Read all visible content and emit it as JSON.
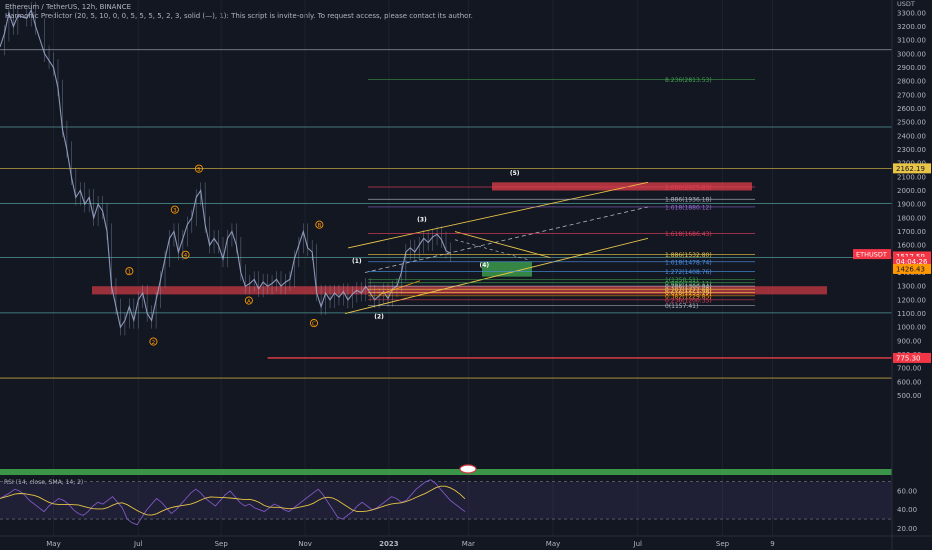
{
  "header": {
    "title": "Ethereum / TetherUS, 12h, BINANCE",
    "indicator": "Harmonic Predictor (20, 5, 10, 0, 0, 5, 5, 5, 5, 2, 3, solid (—), 1): This script is invite-only. To request access, please contact its author.",
    "currency": "USDT"
  },
  "colors": {
    "background": "#131722",
    "candle": "#9aa6c8",
    "red_zone": "#c73a43",
    "green_zone": "#3fa34d",
    "yellow": "#e8c547",
    "orange": "#ff9800",
    "cyan_line": "#5fb8b3",
    "rsi_line": "#7e57c2",
    "rsi_ma": "#e8c547"
  },
  "chart_data": {
    "type": "line",
    "symbol": "ETHUSDT",
    "ylim": [
      -30,
      3350
    ],
    "yticks": [
      800,
      900,
      1000,
      1100,
      1200,
      1300,
      1400,
      1500,
      1600,
      1700,
      1800,
      1900,
      2000,
      2100,
      2200,
      2300,
      2400,
      2500,
      2600,
      2700,
      2800,
      2900,
      3000,
      3100,
      3200,
      3300
    ],
    "ytick_labels": [
      "800.00",
      "900.00",
      "1000.00",
      "1100.00",
      "1200.00",
      "1300.00",
      "1400.00",
      "1500.00",
      "1600.00",
      "1700.00",
      "1800.00",
      "1900.00",
      "2000.00",
      "2100.00",
      "2200.00",
      "2300.00",
      "2400.00",
      "2500.00",
      "2600.00",
      "2700.00",
      "2800.00",
      "2900.00",
      "3000.00",
      "3100.00",
      "3200.00",
      "3300.00"
    ],
    "extra_ticks": [
      {
        "value": 700,
        "label": "700.00"
      },
      {
        "value": 600,
        "label": "600.00"
      },
      {
        "value": 500,
        "label": "500.00"
      }
    ],
    "xlabels": [
      {
        "label": "May",
        "t": 0.06
      },
      {
        "label": "Jul",
        "t": 0.155
      },
      {
        "label": "Sep",
        "t": 0.248
      },
      {
        "label": "Nov",
        "t": 0.342
      },
      {
        "label": "2023",
        "t": 0.436
      },
      {
        "label": "Mar",
        "t": 0.525
      },
      {
        "label": "May",
        "t": 0.62
      },
      {
        "label": "Jul",
        "t": 0.715
      },
      {
        "label": "Sep",
        "t": 0.81
      },
      {
        "label": "9",
        "t": 0.866
      }
    ],
    "price_path": [
      [
        0.0,
        3050
      ],
      [
        0.005,
        3150
      ],
      [
        0.01,
        3300
      ],
      [
        0.015,
        3200
      ],
      [
        0.02,
        3280
      ],
      [
        0.03,
        3260
      ],
      [
        0.035,
        3320
      ],
      [
        0.04,
        3200
      ],
      [
        0.05,
        3000
      ],
      [
        0.055,
        2950
      ],
      [
        0.06,
        2900
      ],
      [
        0.065,
        2750
      ],
      [
        0.07,
        2450
      ],
      [
        0.075,
        2300
      ],
      [
        0.08,
        2100
      ],
      [
        0.085,
        1950
      ],
      [
        0.09,
        2000
      ],
      [
        0.095,
        1900
      ],
      [
        0.1,
        1950
      ],
      [
        0.105,
        1800
      ],
      [
        0.11,
        1900
      ],
      [
        0.115,
        1850
      ],
      [
        0.12,
        1700
      ],
      [
        0.125,
        1300
      ],
      [
        0.13,
        1150
      ],
      [
        0.135,
        1000
      ],
      [
        0.14,
        1050
      ],
      [
        0.145,
        1150
      ],
      [
        0.15,
        1050
      ],
      [
        0.155,
        1200
      ],
      [
        0.16,
        1250
      ],
      [
        0.165,
        1100
      ],
      [
        0.17,
        1050
      ],
      [
        0.175,
        1200
      ],
      [
        0.18,
        1350
      ],
      [
        0.185,
        1500
      ],
      [
        0.19,
        1650
      ],
      [
        0.195,
        1700
      ],
      [
        0.2,
        1550
      ],
      [
        0.205,
        1650
      ],
      [
        0.21,
        1750
      ],
      [
        0.215,
        1800
      ],
      [
        0.22,
        1950
      ],
      [
        0.225,
        2000
      ],
      [
        0.23,
        1750
      ],
      [
        0.235,
        1600
      ],
      [
        0.24,
        1650
      ],
      [
        0.245,
        1600
      ],
      [
        0.25,
        1500
      ],
      [
        0.255,
        1650
      ],
      [
        0.26,
        1700
      ],
      [
        0.265,
        1600
      ],
      [
        0.27,
        1400
      ],
      [
        0.275,
        1300
      ],
      [
        0.28,
        1320
      ],
      [
        0.285,
        1350
      ],
      [
        0.29,
        1280
      ],
      [
        0.295,
        1330
      ],
      [
        0.3,
        1300
      ],
      [
        0.305,
        1320
      ],
      [
        0.31,
        1350
      ],
      [
        0.315,
        1300
      ],
      [
        0.32,
        1330
      ],
      [
        0.325,
        1350
      ],
      [
        0.33,
        1500
      ],
      [
        0.335,
        1600
      ],
      [
        0.34,
        1700
      ],
      [
        0.345,
        1580
      ],
      [
        0.35,
        1550
      ],
      [
        0.355,
        1250
      ],
      [
        0.36,
        1150
      ],
      [
        0.365,
        1250
      ],
      [
        0.37,
        1200
      ],
      [
        0.375,
        1250
      ],
      [
        0.38,
        1220
      ],
      [
        0.385,
        1260
      ],
      [
        0.39,
        1200
      ],
      [
        0.395,
        1240
      ],
      [
        0.4,
        1270
      ],
      [
        0.405,
        1250
      ],
      [
        0.41,
        1300
      ],
      [
        0.415,
        1250
      ],
      [
        0.42,
        1200
      ],
      [
        0.425,
        1230
      ],
      [
        0.43,
        1260
      ],
      [
        0.435,
        1210
      ],
      [
        0.44,
        1280
      ],
      [
        0.445,
        1300
      ],
      [
        0.45,
        1400
      ],
      [
        0.455,
        1550
      ],
      [
        0.46,
        1580
      ],
      [
        0.465,
        1550
      ],
      [
        0.47,
        1600
      ],
      [
        0.475,
        1650
      ],
      [
        0.48,
        1620
      ],
      [
        0.485,
        1660
      ],
      [
        0.49,
        1680
      ],
      [
        0.495,
        1640
      ],
      [
        0.5,
        1560
      ],
      [
        0.505,
        1540
      ]
    ],
    "ratio_levels": [
      {
        "label": "8.236(2813.53)",
        "value": 2813.53,
        "color": "#3fa34d"
      },
      {
        "label": "2.000(2025.83)",
        "value": 2025.83,
        "color": "#e53e5b"
      },
      {
        "label": "1.886(1936.18)",
        "value": 1936.18,
        "color": "#b2b5be"
      },
      {
        "label": "1.618(1880.12)",
        "value": 1880.12,
        "color": "#9c6bd9"
      },
      {
        "label": "1.618(1686.43)",
        "value": 1686.43,
        "color": "#e53e5b"
      },
      {
        "label": "1.886(1532.80)",
        "value": 1532.8,
        "color": "#e8c547"
      },
      {
        "label": "1.618(1478.74)",
        "value": 1478.74,
        "color": "#4a90e2"
      },
      {
        "label": "1.272(1408.76)",
        "value": 1408.76,
        "color": "#4a90e2"
      },
      {
        "label": "1(1350.51)",
        "value": 1350.51,
        "color": "#3fa34d"
      },
      {
        "label": "0.886(1325.11)",
        "value": 1325.11,
        "color": "#3fa34d"
      },
      {
        "label": "0.786(1300.84)",
        "value": 1300.84,
        "color": "#b2b5be"
      },
      {
        "label": "0.707(1277.68)",
        "value": 1277.68,
        "color": "#e8c547"
      },
      {
        "label": "0.618(1253.29)",
        "value": 1253.29,
        "color": "#e8c547"
      },
      {
        "label": "0.382(1229.85)",
        "value": 1229.85,
        "color": "#ff9800"
      },
      {
        "label": "0.236(1200.35)",
        "value": 1200.35,
        "color": "#e53e5b"
      },
      {
        "label": "0(1157.41)",
        "value": 1157.41,
        "color": "#b2b5be"
      }
    ],
    "horizontal_lines": [
      {
        "value": 3030,
        "color": "#b2b5be"
      },
      {
        "value": 2465,
        "color": "#5fb8b3"
      },
      {
        "value": 2162.19,
        "color": "#e8c547"
      },
      {
        "value": 1905,
        "color": "#5fb8b3"
      },
      {
        "value": 1510,
        "color": "#5fb8b3"
      },
      {
        "value": 1105,
        "color": "#5fb8b3"
      },
      {
        "value": 628,
        "color": "#e8c547"
      }
    ],
    "price_tags": [
      {
        "value": 2162.19,
        "label": "2162.19",
        "bg": "#e8c547",
        "fg": "#131722"
      },
      {
        "value": 1517.59,
        "label": "1517.59",
        "bg": "#f23645",
        "fg": "#ffffff"
      },
      {
        "value": 1480,
        "label": "04:04:26",
        "bg": "#f23645",
        "fg": "#ffffff"
      },
      {
        "value": 1426.43,
        "label": "1426.43",
        "bg": "#ff9800",
        "fg": "#131722"
      },
      {
        "value": 775.3,
        "label": "775.30",
        "bg": "#f23645",
        "fg": "#ffffff"
      }
    ],
    "symbol_tag": {
      "label": "ETHUSDT",
      "value": 1535
    },
    "wave_labels_orange": [
      {
        "label": "1",
        "t": 0.145,
        "v": 1410
      },
      {
        "label": "2",
        "t": 0.172,
        "v": 895
      },
      {
        "label": "3",
        "t": 0.196,
        "v": 1860
      },
      {
        "label": "4",
        "t": 0.208,
        "v": 1530
      },
      {
        "label": "5",
        "t": 0.223,
        "v": 2160
      },
      {
        "label": "A",
        "t": 0.279,
        "v": 1195
      },
      {
        "label": "B",
        "t": 0.358,
        "v": 1750
      },
      {
        "label": "C",
        "t": 0.352,
        "v": 1030
      }
    ],
    "wave_labels_white": [
      {
        "label": "(1)",
        "t": 0.4,
        "v": 1470
      },
      {
        "label": "(2)",
        "t": 0.425,
        "v": 1065
      },
      {
        "label": "(3)",
        "t": 0.473,
        "v": 1775
      },
      {
        "label": "(4)",
        "t": 0.543,
        "v": 1440
      },
      {
        "label": "(5)",
        "t": 0.577,
        "v": 2115
      }
    ],
    "rsi": {
      "label": "RSI (14, close, SMA, 14, 2)",
      "ylim": [
        13,
        75
      ],
      "ticks": [
        60,
        40,
        20
      ],
      "tick_labels": [
        "60.00",
        "40.00",
        "20.00"
      ],
      "band": [
        30,
        70
      ],
      "values": [
        52,
        55,
        58,
        62,
        60,
        56,
        50,
        46,
        42,
        38,
        44,
        48,
        52,
        50,
        46,
        40,
        36,
        34,
        38,
        44,
        48,
        46,
        50,
        54,
        48,
        42,
        30,
        26,
        24,
        32,
        40,
        46,
        52,
        48,
        42,
        36,
        40,
        46,
        52,
        58,
        62,
        58,
        52,
        48,
        44,
        50,
        56,
        60,
        54,
        48,
        44,
        46,
        42,
        40,
        38,
        42,
        46,
        44,
        40,
        38,
        42,
        46,
        50,
        54,
        58,
        62,
        56,
        48,
        40,
        32,
        30,
        34,
        38,
        44,
        48,
        44,
        40,
        42,
        46,
        50,
        54,
        52,
        48,
        50,
        56,
        62,
        66,
        70,
        72,
        68,
        62,
        56,
        50,
        46,
        42,
        38
      ]
    }
  }
}
